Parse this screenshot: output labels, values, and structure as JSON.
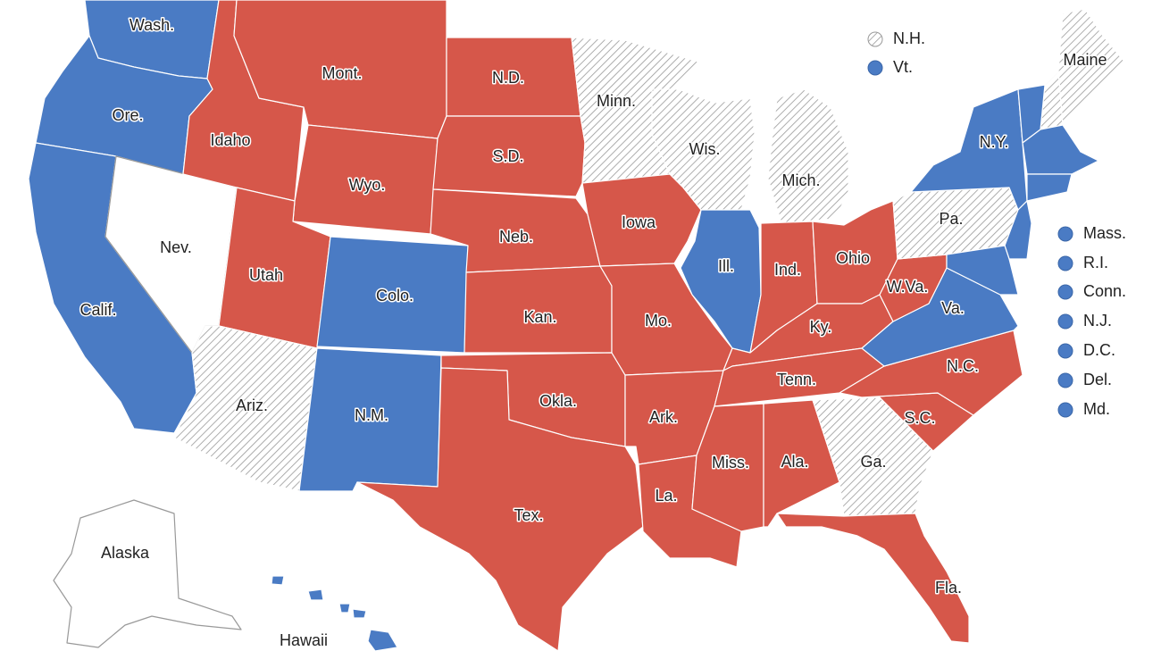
{
  "states": [
    {
      "label": "Wash.",
      "color": "#4a7bc4"
    },
    {
      "label": "Ore.",
      "color": "#4a7bc4"
    },
    {
      "label": "Calif.",
      "color": "#4a7bc4"
    },
    {
      "label": "Nev.",
      "color": "#ffffff"
    },
    {
      "label": "Idaho",
      "color": "#d6574a"
    },
    {
      "label": "Mont.",
      "color": "#d6574a"
    },
    {
      "label": "Wyo.",
      "color": "#d6574a"
    },
    {
      "label": "Utah",
      "color": "#d6574a"
    },
    {
      "label": "Colo.",
      "color": "#4a7bc4"
    },
    {
      "label": "Ariz.",
      "color": "#ffffff",
      "hatched": true
    },
    {
      "label": "N.M.",
      "color": "#4a7bc4"
    },
    {
      "label": "N.D.",
      "color": "#d6574a"
    },
    {
      "label": "S.D.",
      "color": "#d6574a"
    },
    {
      "label": "Neb.",
      "color": "#d6574a"
    },
    {
      "label": "Kan.",
      "color": "#d6574a"
    },
    {
      "label": "Okla.",
      "color": "#d6574a"
    },
    {
      "label": "Tex.",
      "color": "#d6574a"
    },
    {
      "label": "Minn.",
      "color": "#ffffff",
      "hatched": true
    },
    {
      "label": "Iowa",
      "color": "#d6574a"
    },
    {
      "label": "Mo.",
      "color": "#d6574a"
    },
    {
      "label": "Ark.",
      "color": "#d6574a"
    },
    {
      "label": "La.",
      "color": "#d6574a"
    },
    {
      "label": "Wis.",
      "color": "#ffffff",
      "hatched": true
    },
    {
      "label": "Ill.",
      "color": "#4a7bc4"
    },
    {
      "label": "Mich.",
      "color": "#ffffff",
      "hatched": true
    },
    {
      "label": "Ind.",
      "color": "#d6574a"
    },
    {
      "label": "Ohio",
      "color": "#d6574a"
    },
    {
      "label": "Ky.",
      "color": "#d6574a"
    },
    {
      "label": "Tenn.",
      "color": "#d6574a"
    },
    {
      "label": "Miss.",
      "color": "#d6574a"
    },
    {
      "label": "Ala.",
      "color": "#d6574a"
    },
    {
      "label": "Ga.",
      "color": "#ffffff",
      "hatched": true
    },
    {
      "label": "Fla.",
      "color": "#d6574a"
    },
    {
      "label": "S.C.",
      "color": "#d6574a"
    },
    {
      "label": "N.C.",
      "color": "#d6574a"
    },
    {
      "label": "Va.",
      "color": "#4a7bc4"
    },
    {
      "label": "W.Va.",
      "color": "#d6574a"
    },
    {
      "label": "Pa.",
      "color": "#ffffff",
      "hatched": true
    },
    {
      "label": "N.Y.",
      "color": "#4a7bc4"
    },
    {
      "label": "Maine",
      "color": "#ffffff",
      "hatched": true
    },
    {
      "label": "Alaska",
      "color": "#ffffff"
    },
    {
      "label": "Hawaii",
      "color": "#4a7bc4"
    },
    {
      "label": "N.H.",
      "color": "#ffffff",
      "hatched": true
    },
    {
      "label": "Vt.",
      "color": "#4a7bc4"
    },
    {
      "label": "Mass.",
      "color": "#4a7bc4"
    },
    {
      "label": "R.I.",
      "color": "#4a7bc4"
    },
    {
      "label": "Conn.",
      "color": "#4a7bc4"
    },
    {
      "label": "N.J.",
      "color": "#4a7bc4"
    },
    {
      "label": "D.C.",
      "color": "#4a7bc4"
    },
    {
      "label": "Del.",
      "color": "#4a7bc4"
    },
    {
      "label": "Md.",
      "color": "#4a7bc4"
    }
  ]
}
